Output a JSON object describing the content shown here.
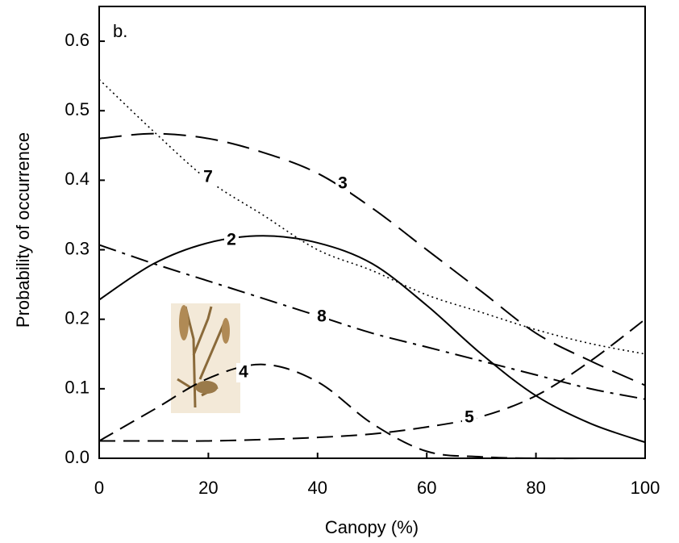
{
  "chart_data": {
    "type": "line",
    "panel_label": "b.",
    "x_label": "Canopy (%)",
    "y_label": "Probability of occurrence",
    "x": [
      0,
      10,
      20,
      30,
      40,
      50,
      60,
      70,
      80,
      90,
      100
    ],
    "xlim": [
      0,
      100
    ],
    "xticks": [
      0,
      20,
      40,
      60,
      80,
      100
    ],
    "ylim": [
      0,
      0.65
    ],
    "yticks": [
      {
        "value": 0,
        "label": "0.0"
      },
      0.1,
      0.2,
      0.3,
      0.4,
      0.5,
      0.6
    ],
    "series": [
      {
        "name": "7",
        "color": "#000000",
        "style": "dotted",
        "values": [
          0.545,
          0.47,
          0.4,
          0.35,
          0.3,
          0.27,
          0.235,
          0.21,
          0.185,
          0.165,
          0.15
        ]
      },
      {
        "name": "3",
        "color": "#000000",
        "style": "long-dash",
        "values": [
          0.46,
          0.467,
          0.46,
          0.44,
          0.41,
          0.36,
          0.3,
          0.24,
          0.18,
          0.14,
          0.105
        ]
      },
      {
        "name": "2",
        "color": "#000000",
        "style": "solid",
        "values": [
          0.228,
          0.28,
          0.31,
          0.32,
          0.31,
          0.28,
          0.22,
          0.15,
          0.09,
          0.05,
          0.023
        ]
      },
      {
        "name": "8",
        "color": "#000000",
        "style": "dash-dot",
        "values": [
          0.307,
          0.28,
          0.255,
          0.23,
          0.205,
          0.18,
          0.16,
          0.14,
          0.12,
          0.1,
          0.085
        ]
      },
      {
        "name": "4",
        "color": "#000000",
        "style": "dash",
        "values": [
          0.025,
          0.07,
          0.115,
          0.135,
          0.11,
          0.05,
          0.01,
          0.002,
          0,
          0,
          0
        ]
      },
      {
        "name": "5",
        "color": "#000000",
        "style": "dash",
        "values": [
          0.025,
          0.025,
          0.025,
          0.027,
          0.03,
          0.035,
          0.045,
          0.06,
          0.09,
          0.14,
          0.2
        ]
      }
    ]
  }
}
